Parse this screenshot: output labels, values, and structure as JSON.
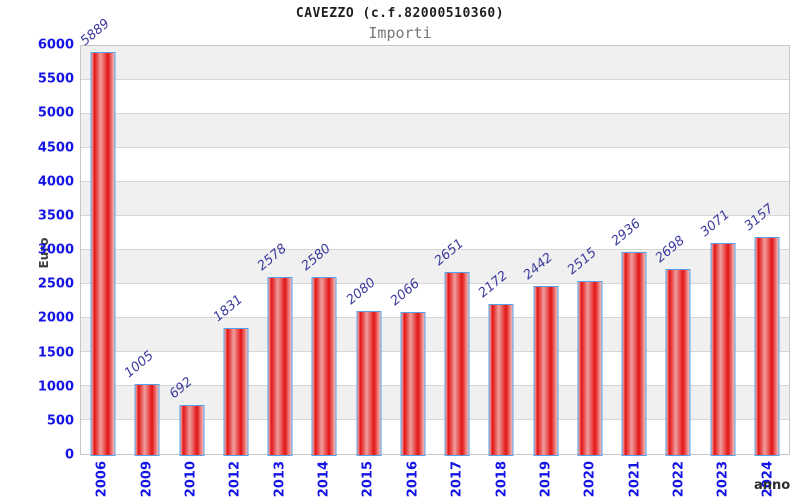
{
  "chart_data": {
    "type": "bar",
    "title": "CAVEZZO (c.f.82000510360)",
    "subtitle": "Importi",
    "ylabel": "Euro",
    "xlabel": "anno",
    "categories": [
      "2006",
      "2009",
      "2010",
      "2012",
      "2013",
      "2014",
      "2015",
      "2016",
      "2017",
      "2018",
      "2019",
      "2020",
      "2021",
      "2022",
      "2023",
      "2024"
    ],
    "values": [
      5889,
      1005,
      692,
      1831,
      2578,
      2580,
      2080,
      2066,
      2651,
      2172,
      2442,
      2515,
      2936,
      2698,
      3071,
      3157
    ],
    "value_labels": [
      "5889",
      "1005",
      "692",
      "1831",
      "2578",
      "2580",
      "2080",
      "2066",
      "2651",
      "2172",
      "2442",
      "2515",
      "2936",
      "2698",
      "3071",
      "3157"
    ],
    "ylim": [
      0,
      6000
    ],
    "yticks": [
      0,
      500,
      1000,
      1500,
      2000,
      2500,
      3000,
      3500,
      4000,
      4500,
      5000,
      5500,
      6000
    ],
    "grid": true,
    "legend": "none",
    "colors": {
      "tick_label_blue": "#1414e6",
      "value_label_navy": "#3a3a9e",
      "bar_red": "#e41212",
      "bar_border_blue": "#55a0e8",
      "band_gray": "#f0f0f0",
      "gridline_gray": "#d6d6d6",
      "title_dark": "#1f1f1f",
      "subtitle_gray": "#787878"
    }
  }
}
